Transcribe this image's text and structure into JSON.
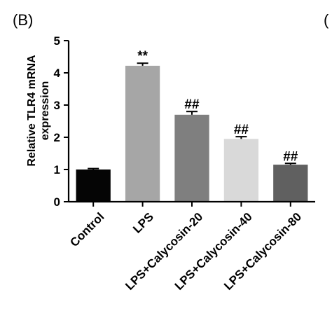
{
  "panel": {
    "label": "(B)",
    "next_panel_label": "("
  },
  "chart_data": {
    "type": "bar",
    "title": "",
    "xlabel": "",
    "ylabel": "Relative TLR4 mRNA expression",
    "ylabel_lines": [
      "Relative TLR4 mRNA",
      "expression"
    ],
    "ylim": [
      0,
      5
    ],
    "yticks": [
      "0",
      "1",
      "2",
      "3",
      "4",
      "5"
    ],
    "categories": [
      "Control",
      "LPS",
      "LPS+Calycosin-20",
      "LPS+Calycosin-40",
      "LPS+Calycosin-80"
    ],
    "values": [
      1.0,
      4.22,
      2.7,
      1.95,
      1.15
    ],
    "errors": [
      0.03,
      0.08,
      0.1,
      0.07,
      0.04
    ],
    "bar_colors": [
      "#050505",
      "#a6a6a6",
      "#7f7f7f",
      "#d9d9d9",
      "#606060"
    ],
    "significance": [
      "",
      "**",
      "##",
      "##",
      "##"
    ],
    "grid": false
  }
}
